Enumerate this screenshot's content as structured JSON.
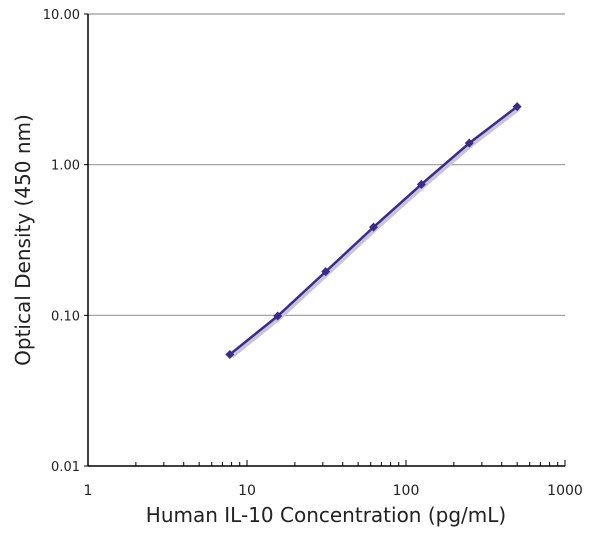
{
  "chart_data": {
    "type": "line",
    "title": "",
    "xlabel": "Human IL-10 Concentration (pg/mL)",
    "ylabel": "Optical Density (450 nm)",
    "x_scale": "log",
    "y_scale": "log",
    "xlim": [
      1,
      1000
    ],
    "ylim": [
      0.01,
      10
    ],
    "x_ticks": [
      "1",
      "10",
      "100",
      "1000"
    ],
    "y_ticks": [
      "0.01",
      "0.10",
      "1.00",
      "10.00"
    ],
    "grid": "horizontal major",
    "series": [
      {
        "color": "#3d2b8a",
        "marker": "diamond",
        "x": [
          7.8,
          15.6,
          31.25,
          62.5,
          125,
          250,
          500
        ],
        "y": [
          0.055,
          0.099,
          0.195,
          0.385,
          0.74,
          1.39,
          2.43
        ]
      }
    ]
  }
}
